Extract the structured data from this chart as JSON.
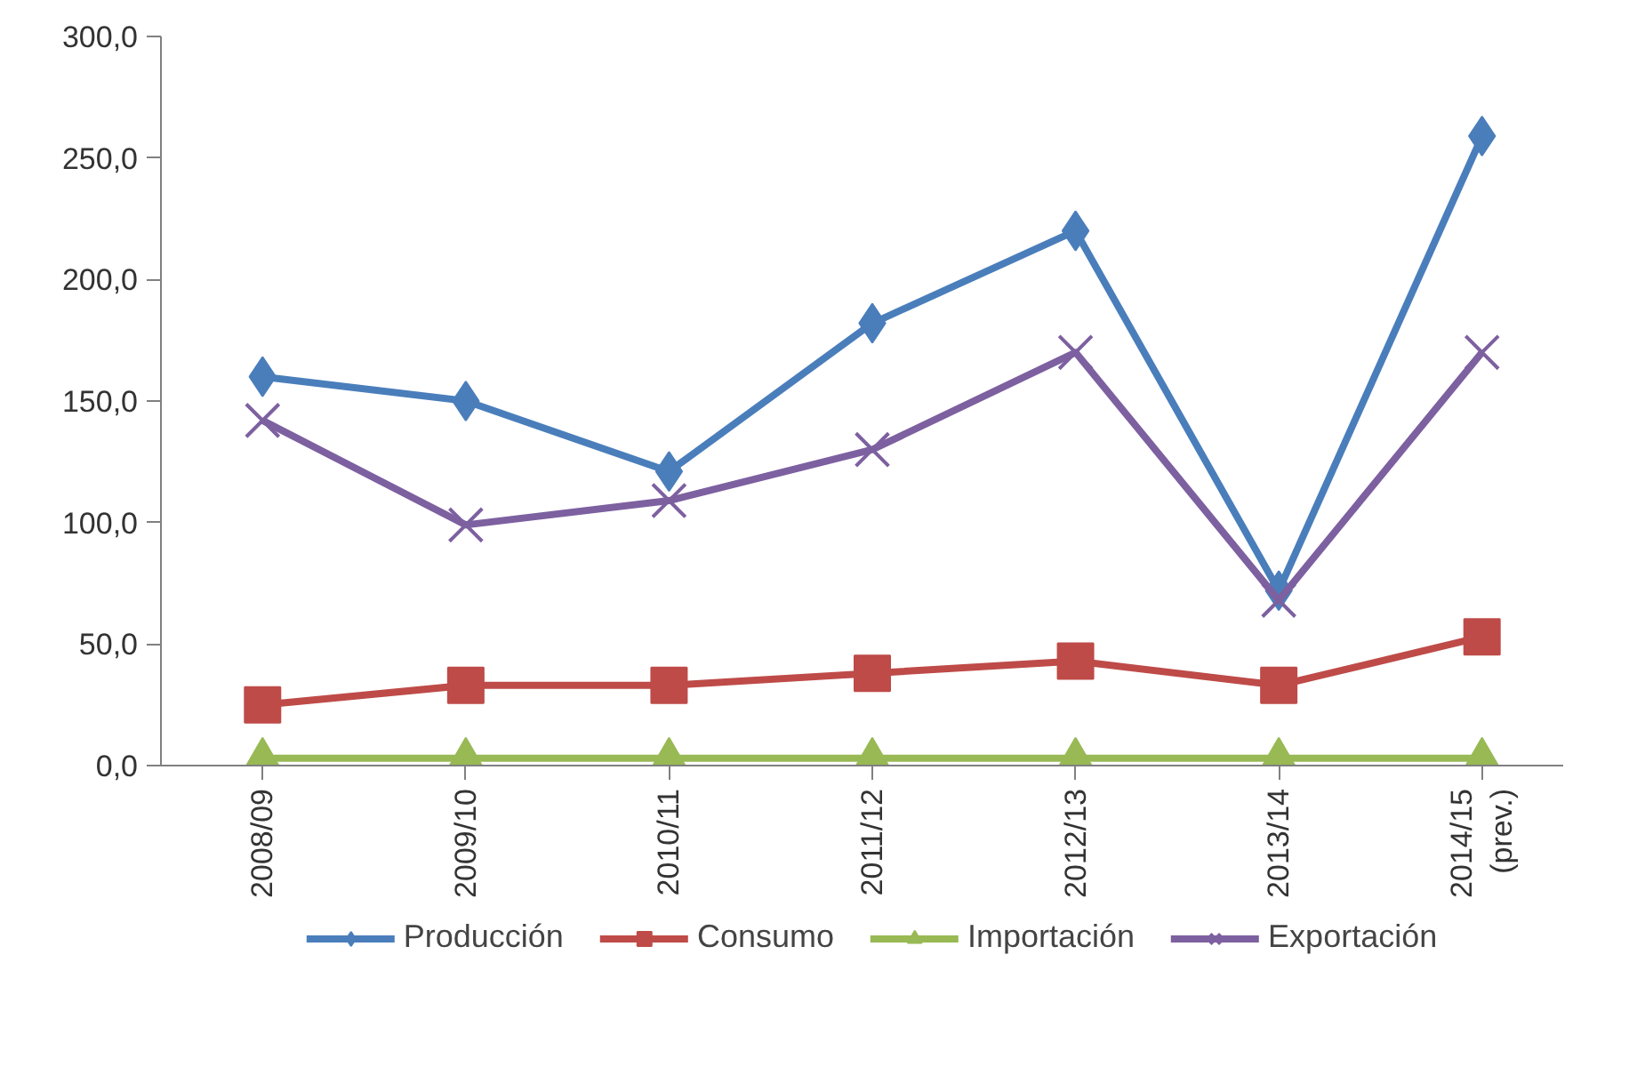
{
  "chart_data": {
    "type": "line",
    "categories": [
      "2008/09",
      "2009/10",
      "2010/11",
      "2011/12",
      "2012/13",
      "2013/14",
      "2014/15\n(prev.)"
    ],
    "series": [
      {
        "name": "Producción",
        "color": "#4a7ebb",
        "marker": "diamond",
        "values": [
          160,
          150,
          121,
          182,
          220,
          72,
          259
        ]
      },
      {
        "name": "Consumo",
        "color": "#be4b48",
        "marker": "square",
        "values": [
          25,
          33,
          33,
          38,
          43,
          33,
          53
        ]
      },
      {
        "name": "Importación",
        "color": "#98b954",
        "marker": "triangle",
        "values": [
          3,
          3,
          3,
          3,
          3,
          3,
          3
        ]
      },
      {
        "name": "Exportación",
        "color": "#7d60a0",
        "marker": "cross",
        "values": [
          142,
          99,
          109,
          130,
          170,
          68,
          170
        ]
      }
    ],
    "ylim": [
      0,
      300
    ],
    "yticks": [
      {
        "value": 0,
        "label": "0,0"
      },
      {
        "value": 50,
        "label": "50,0"
      },
      {
        "value": 100,
        "label": "100,0"
      },
      {
        "value": 150,
        "label": "150,0"
      },
      {
        "value": 200,
        "label": "200,0"
      },
      {
        "value": 250,
        "label": "250,0"
      },
      {
        "value": 300,
        "label": "300,0"
      }
    ],
    "grid": false,
    "legend": "bottom",
    "line_style": "solid"
  }
}
